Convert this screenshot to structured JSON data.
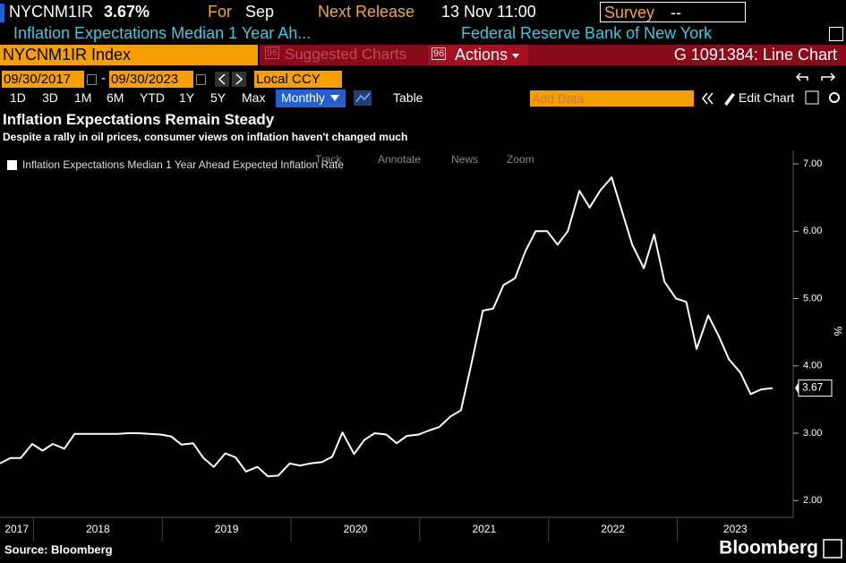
{
  "header": {
    "ticker": "NYCNM1IR",
    "last": "3.67%",
    "for_label": "For",
    "for_value": "Sep",
    "next_release_label": "Next Release",
    "next_release": "13 Nov 11:00",
    "survey_label": "Survey",
    "survey_value": "--",
    "name": "Inflation Expectations Median 1 Year Ah...",
    "source_org": "Federal Reserve Bank of New York"
  },
  "toolbar": {
    "security": "NYCNM1IR Index",
    "suggested_code": "96",
    "suggested": "Suggested Charts",
    "actions_code": "96",
    "actions": "Actions",
    "function": "G 1091384: Line Chart",
    "start_date": "09/30/2017",
    "date_sep": "-",
    "end_date": "09/30/2023",
    "currency": "Local CCY",
    "periods": [
      "1D",
      "3D",
      "1M",
      "6M",
      "YTD",
      "1Y",
      "5Y",
      "Max"
    ],
    "frequency": "Monthly",
    "table": "Table",
    "add_data": "Add Data",
    "edit_chart": "Edit Chart",
    "chart_tools": [
      "Track",
      "Annotate",
      "News",
      "Zoom"
    ]
  },
  "chart_data": {
    "type": "line",
    "title": "Inflation Expectations Remain Steady",
    "subtitle": "Despite a rally in oil prices, consumer views on inflation haven't changed much",
    "y_label": "%",
    "x": [
      2017.74,
      2017.82,
      2017.9,
      2017.99,
      2018.07,
      2018.15,
      2018.24,
      2018.32,
      2018.4,
      2018.49,
      2018.57,
      2018.65,
      2018.74,
      2018.82,
      2018.9,
      2018.99,
      2019.07,
      2019.15,
      2019.24,
      2019.32,
      2019.4,
      2019.49,
      2019.57,
      2019.65,
      2019.74,
      2019.82,
      2019.9,
      2019.99,
      2020.07,
      2020.15,
      2020.24,
      2020.32,
      2020.4,
      2020.49,
      2020.57,
      2020.65,
      2020.74,
      2020.82,
      2020.9,
      2020.99,
      2021.07,
      2021.15,
      2021.24,
      2021.32,
      2021.4,
      2021.49,
      2021.57,
      2021.65,
      2021.74,
      2021.82,
      2021.9,
      2021.99,
      2022.07,
      2022.15,
      2022.24,
      2022.32,
      2022.4,
      2022.49,
      2022.57,
      2022.65,
      2022.74,
      2022.82,
      2022.9,
      2022.99,
      2023.07,
      2023.15,
      2023.24,
      2023.32,
      2023.4,
      2023.49,
      2023.57,
      2023.65,
      2023.74
    ],
    "series": [
      {
        "name": "Inflation Expectations Median 1 Year Ahead Expected Inflation Rate",
        "color": "#ffffff",
        "values": [
          2.55,
          2.63,
          2.63,
          2.84,
          2.74,
          2.84,
          2.77,
          2.99,
          2.99,
          2.99,
          2.99,
          2.99,
          3.0,
          3.0,
          2.99,
          2.98,
          2.95,
          2.83,
          2.85,
          2.63,
          2.5,
          2.7,
          2.64,
          2.43,
          2.5,
          2.36,
          2.37,
          2.55,
          2.52,
          2.55,
          2.57,
          2.65,
          3.01,
          2.69,
          2.9,
          3.0,
          2.98,
          2.85,
          2.96,
          2.98,
          3.04,
          3.09,
          3.25,
          3.34,
          4.02,
          4.82,
          4.85,
          5.2,
          5.3,
          5.7,
          6.0,
          6.0,
          5.8,
          6.0,
          6.6,
          6.35,
          6.6,
          6.8,
          6.3,
          5.8,
          5.45,
          5.95,
          5.25,
          5.0,
          4.95,
          4.25,
          4.75,
          4.45,
          4.1,
          3.9,
          3.58,
          3.65,
          3.67
        ]
      }
    ],
    "xlim": [
      2017.74,
      2023.9
    ],
    "xticks": [
      2017,
      2018,
      2019,
      2020,
      2021,
      2022,
      2023
    ],
    "ylim": [
      1.75,
      7.2
    ],
    "yticks": [
      {
        "value": 2,
        "label": "2.00"
      },
      {
        "value": 3,
        "label": "3.00"
      },
      {
        "value": 4,
        "label": "4.00"
      },
      {
        "value": 5,
        "label": "5.00"
      },
      {
        "value": 6,
        "label": "6.00"
      },
      {
        "value": 7,
        "label": "7.00"
      }
    ],
    "grid": false
  },
  "footer": {
    "source": "Source: Bloomberg",
    "brand": "Bloomberg"
  }
}
